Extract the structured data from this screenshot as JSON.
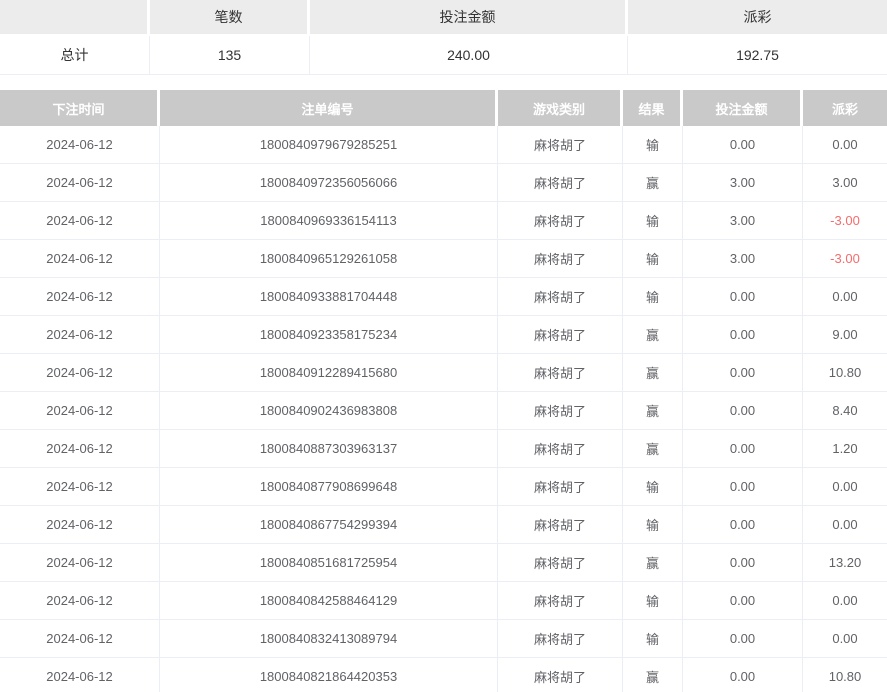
{
  "colors": {
    "header_bg": "#c9c9c9",
    "summary_header_bg": "#ececec",
    "negative_payout_red": "#f56c6c",
    "body_text": "#606266",
    "border": "#ebeef5"
  },
  "summary_table": {
    "columns": [
      "",
      "笔数",
      "投注金额",
      "派彩"
    ],
    "row": {
      "label": "总计",
      "count": "135",
      "bet_amount": "240.00",
      "payout": "192.75"
    }
  },
  "bet_table": {
    "columns": [
      "下注时间",
      "注单编号",
      "游戏类别",
      "结果",
      "投注金额",
      "派彩"
    ],
    "rows": [
      {
        "date": "2024-06-12",
        "bet_id": "1800840979679285251",
        "game": "麻将胡了",
        "result": "输",
        "amount": "0.00",
        "payout": "0.00"
      },
      {
        "date": "2024-06-12",
        "bet_id": "1800840972356056066",
        "game": "麻将胡了",
        "result": "赢",
        "amount": "3.00",
        "payout": "3.00"
      },
      {
        "date": "2024-06-12",
        "bet_id": "1800840969336154113",
        "game": "麻将胡了",
        "result": "输",
        "amount": "3.00",
        "payout": "-3.00"
      },
      {
        "date": "2024-06-12",
        "bet_id": "1800840965129261058",
        "game": "麻将胡了",
        "result": "输",
        "amount": "3.00",
        "payout": "-3.00"
      },
      {
        "date": "2024-06-12",
        "bet_id": "1800840933881704448",
        "game": "麻将胡了",
        "result": "输",
        "amount": "0.00",
        "payout": "0.00"
      },
      {
        "date": "2024-06-12",
        "bet_id": "1800840923358175234",
        "game": "麻将胡了",
        "result": "赢",
        "amount": "0.00",
        "payout": "9.00"
      },
      {
        "date": "2024-06-12",
        "bet_id": "1800840912289415680",
        "game": "麻将胡了",
        "result": "赢",
        "amount": "0.00",
        "payout": "10.80"
      },
      {
        "date": "2024-06-12",
        "bet_id": "1800840902436983808",
        "game": "麻将胡了",
        "result": "赢",
        "amount": "0.00",
        "payout": "8.40"
      },
      {
        "date": "2024-06-12",
        "bet_id": "1800840887303963137",
        "game": "麻将胡了",
        "result": "赢",
        "amount": "0.00",
        "payout": "1.20"
      },
      {
        "date": "2024-06-12",
        "bet_id": "1800840877908699648",
        "game": "麻将胡了",
        "result": "输",
        "amount": "0.00",
        "payout": "0.00"
      },
      {
        "date": "2024-06-12",
        "bet_id": "1800840867754299394",
        "game": "麻将胡了",
        "result": "输",
        "amount": "0.00",
        "payout": "0.00"
      },
      {
        "date": "2024-06-12",
        "bet_id": "1800840851681725954",
        "game": "麻将胡了",
        "result": "赢",
        "amount": "0.00",
        "payout": "13.20"
      },
      {
        "date": "2024-06-12",
        "bet_id": "1800840842588464129",
        "game": "麻将胡了",
        "result": "输",
        "amount": "0.00",
        "payout": "0.00"
      },
      {
        "date": "2024-06-12",
        "bet_id": "1800840832413089794",
        "game": "麻将胡了",
        "result": "输",
        "amount": "0.00",
        "payout": "0.00"
      },
      {
        "date": "2024-06-12",
        "bet_id": "1800840821864420353",
        "game": "麻将胡了",
        "result": "赢",
        "amount": "0.00",
        "payout": "10.80"
      }
    ]
  }
}
